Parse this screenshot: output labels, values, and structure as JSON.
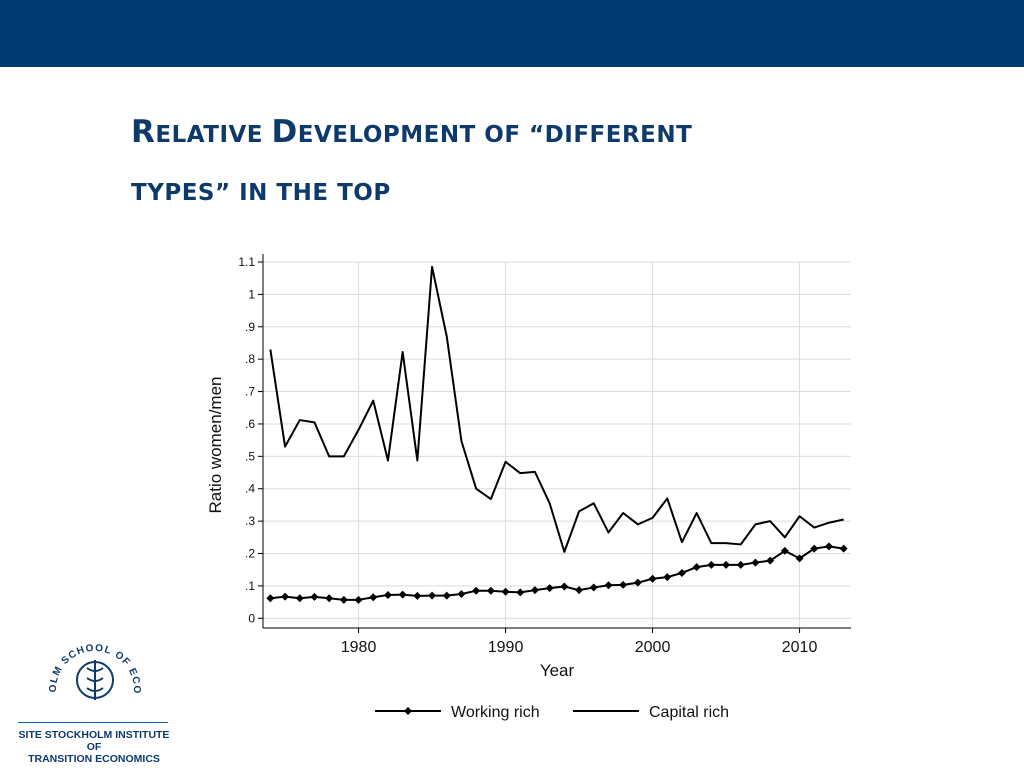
{
  "slide": {
    "title_line1": [
      "R",
      "ELATIVE ",
      "D",
      "EVELOPMENT OF “DIFFERENT"
    ],
    "title_line2": "TYPES” IN THE TOP"
  },
  "logo": {
    "arc_text": "STOCKHOLM SCHOOL OF ECONOMICS",
    "caption_line1": "SITE STOCKHOLM INSTITUTE OF",
    "caption_line2": "TRANSITION ECONOMICS"
  },
  "colors": {
    "topbar": "#003a70",
    "title": "#0e3a6b",
    "series": "#000000"
  },
  "chart_data": {
    "type": "line",
    "title": "",
    "xlabel": "Year",
    "ylabel": "Ratio women/men",
    "xlim": [
      1973.5,
      2013.5
    ],
    "ylim": [
      -0.03,
      1.1
    ],
    "xticks": [
      1980,
      1990,
      2000,
      2010
    ],
    "xtick_labels": [
      "1980",
      "1990",
      "2000",
      "2010"
    ],
    "yticks": [
      0,
      0.1,
      0.2,
      0.3,
      0.4,
      0.5,
      0.6,
      0.7,
      0.8,
      0.9,
      1,
      1.1
    ],
    "ytick_labels": [
      "0",
      ".1",
      ".2",
      ".3",
      ".4",
      ".5",
      ".6",
      ".7",
      ".8",
      ".9",
      "1",
      "1.1"
    ],
    "grid": true,
    "legend_position": "bottom",
    "x": [
      1974,
      1975,
      1976,
      1977,
      1978,
      1979,
      1980,
      1981,
      1982,
      1983,
      1984,
      1985,
      1986,
      1987,
      1988,
      1989,
      1990,
      1991,
      1992,
      1993,
      1994,
      1995,
      1996,
      1997,
      1998,
      1999,
      2000,
      2001,
      2002,
      2003,
      2004,
      2005,
      2006,
      2007,
      2008,
      2009,
      2010,
      2011,
      2012,
      2013
    ],
    "series": [
      {
        "name": "Working rich",
        "marker": "diamond",
        "values": [
          0.062,
          0.067,
          0.062,
          0.066,
          0.062,
          0.057,
          0.057,
          0.065,
          0.072,
          0.073,
          0.069,
          0.07,
          0.07,
          0.075,
          0.085,
          0.085,
          0.082,
          0.08,
          0.087,
          0.093,
          0.098,
          0.087,
          0.095,
          0.102,
          0.103,
          0.11,
          0.122,
          0.127,
          0.14,
          0.158,
          0.165,
          0.165,
          0.165,
          0.172,
          0.178,
          0.208,
          0.185,
          0.215,
          0.222,
          0.215
        ]
      },
      {
        "name": "Capital rich",
        "marker": "none",
        "values": [
          0.83,
          0.53,
          0.612,
          0.605,
          0.5,
          0.5,
          0.582,
          0.672,
          0.487,
          0.822,
          0.487,
          1.085,
          0.87,
          0.547,
          0.4,
          0.368,
          0.483,
          0.448,
          0.452,
          0.355,
          0.205,
          0.33,
          0.355,
          0.265,
          0.325,
          0.29,
          0.31,
          0.37,
          0.235,
          0.325,
          0.232,
          0.232,
          0.228,
          0.29,
          0.3,
          0.25,
          0.315,
          0.28,
          0.295,
          0.305
        ]
      }
    ]
  }
}
